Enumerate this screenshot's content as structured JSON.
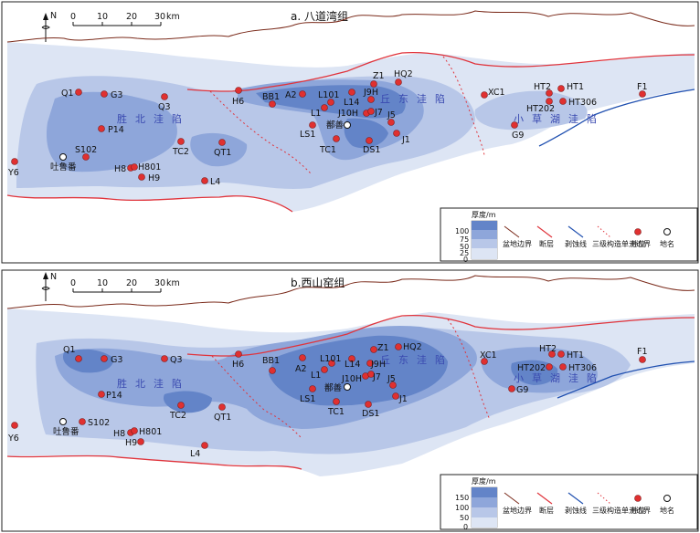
{
  "panels": [
    {
      "title": "a. 八道湾组",
      "scale": {
        "ticks": [
          "0",
          "10",
          "20",
          "30"
        ],
        "unit": "km"
      },
      "north": "N",
      "regions": [
        "胜北洼陷",
        "丘东洼陷",
        "小草湖洼陷"
      ],
      "legend": {
        "title": "厚度/m",
        "ticks": [
          "100",
          "75",
          "50",
          "25",
          "0"
        ],
        "items": [
          "盆地边界",
          "断层",
          "剥蚀线",
          "三级构造单元边界",
          "井位",
          "地名"
        ]
      },
      "wells": [
        {
          "name": "Q1"
        },
        {
          "name": "G3"
        },
        {
          "name": "Q3"
        },
        {
          "name": "H6"
        },
        {
          "name": "BB1"
        },
        {
          "name": "A2"
        },
        {
          "name": "L101"
        },
        {
          "name": "L1"
        },
        {
          "name": "L14"
        },
        {
          "name": "Z1"
        },
        {
          "name": "HQ2"
        },
        {
          "name": "J9H"
        },
        {
          "name": "J10H"
        },
        {
          "name": "J7"
        },
        {
          "name": "J5"
        },
        {
          "name": "J1"
        },
        {
          "name": "LS1"
        },
        {
          "name": "TC1"
        },
        {
          "name": "DS1"
        },
        {
          "name": "XC1"
        },
        {
          "name": "G9"
        },
        {
          "name": "HT2"
        },
        {
          "name": "HT1"
        },
        {
          "name": "HT202"
        },
        {
          "name": "HT306"
        },
        {
          "name": "F1"
        },
        {
          "name": "P14"
        },
        {
          "name": "TC2"
        },
        {
          "name": "QT1"
        },
        {
          "name": "S102"
        },
        {
          "name": "Y6"
        },
        {
          "name": "H8"
        },
        {
          "name": "H801"
        },
        {
          "name": "H9"
        },
        {
          "name": "L4"
        }
      ],
      "places": [
        "鄯善",
        "吐鲁番"
      ]
    },
    {
      "title": "b.西山窑组",
      "scale": {
        "ticks": [
          "0",
          "10",
          "20",
          "30"
        ],
        "unit": "km"
      },
      "north": "N",
      "regions": [
        "胜北洼陷",
        "丘东洼陷",
        "小草湖洼陷"
      ],
      "legend": {
        "title": "厚度/m",
        "ticks": [
          "150",
          "100",
          "50",
          "0"
        ],
        "items": [
          "盆地边界",
          "断层",
          "剥蚀线",
          "三级构造单元边界",
          "井位",
          "地名"
        ]
      },
      "wells": [
        {
          "name": "Q1"
        },
        {
          "name": "G3"
        },
        {
          "name": "Q3"
        },
        {
          "name": "H6"
        },
        {
          "name": "BB1"
        },
        {
          "name": "A2"
        },
        {
          "name": "L101"
        },
        {
          "name": "L1"
        },
        {
          "name": "L14"
        },
        {
          "name": "Z1"
        },
        {
          "name": "HQ2"
        },
        {
          "name": "J9H"
        },
        {
          "name": "J10H"
        },
        {
          "name": "J7"
        },
        {
          "name": "J5"
        },
        {
          "name": "J1"
        },
        {
          "name": "LS1"
        },
        {
          "name": "TC1"
        },
        {
          "name": "DS1"
        },
        {
          "name": "XC1"
        },
        {
          "name": "G9"
        },
        {
          "name": "HT2"
        },
        {
          "name": "HT1"
        },
        {
          "name": "HT202"
        },
        {
          "name": "HT306"
        },
        {
          "name": "F1"
        },
        {
          "name": "P14"
        },
        {
          "name": "TC2"
        },
        {
          "name": "QT1"
        },
        {
          "name": "S102"
        },
        {
          "name": "Y6"
        },
        {
          "name": "H8"
        },
        {
          "name": "H801"
        },
        {
          "name": "H9"
        },
        {
          "name": "L4"
        }
      ],
      "places": [
        "鄯善",
        "吐鲁番"
      ]
    }
  ],
  "colors": {
    "boundary": "#7a2a1a",
    "fault": "#e0343c",
    "erosion": "#2050b0",
    "well": "#e03030",
    "shade1": "#dde5f4",
    "shade2": "#b8c7e8",
    "shade3": "#8ea6da",
    "shade4": "#6384c8",
    "region_text": "#3a4ab0"
  }
}
